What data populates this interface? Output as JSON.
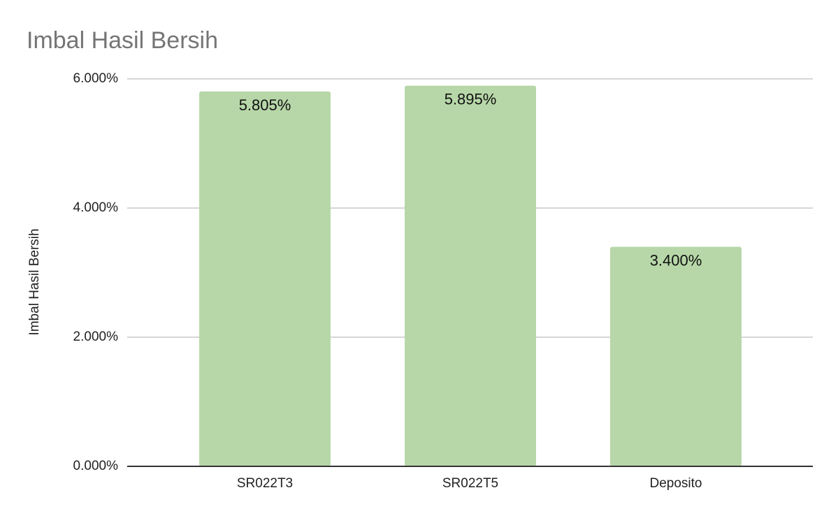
{
  "chart_data": {
    "type": "bar",
    "title": "Imbal Hasil Bersih",
    "y_label": "Imbal Hasil Bersih",
    "categories": [
      "SR022T3",
      "SR022T5",
      "Deposito"
    ],
    "values": [
      5.805,
      5.895,
      3.4
    ],
    "value_labels": [
      "5.805%",
      "5.895%",
      "3.400%"
    ],
    "color": "#b7d7a8",
    "ylim": [
      0,
      6
    ],
    "yticks": [
      {
        "value": 0,
        "label": "0.000%"
      },
      {
        "value": 2,
        "label": "2.000%"
      },
      {
        "value": 4,
        "label": "4.000%"
      },
      {
        "value": 6,
        "label": "6.000%"
      }
    ],
    "grid": true
  }
}
